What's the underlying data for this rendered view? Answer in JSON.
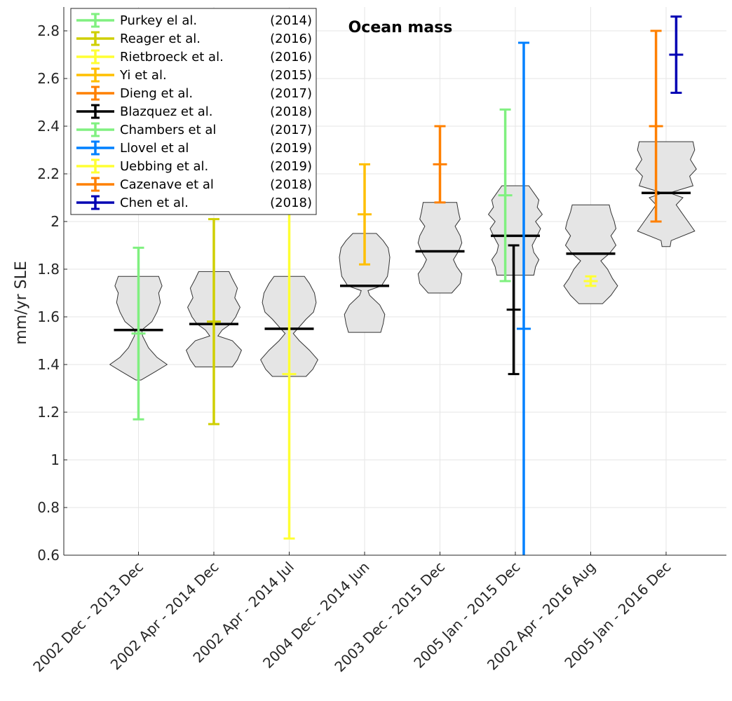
{
  "chart_data": {
    "type": "violin-errorbar",
    "title": "Ocean mass",
    "xlabel": "",
    "ylabel": "mm/yr SLE",
    "ylim": [
      0.6,
      2.9
    ],
    "yticks": [
      0.6,
      0.8,
      1,
      1.2,
      1.4,
      1.6,
      1.8,
      2,
      2.2,
      2.4,
      2.6,
      2.8
    ],
    "ytick_labels": [
      "0.6",
      "0.8",
      "1",
      "1.2",
      "1.4",
      "1.6",
      "1.8",
      "2",
      "2.2",
      "2.4",
      "2.6",
      "2.8"
    ],
    "grid": true,
    "legend_position": "top-left",
    "categories": [
      "2002 Dec - 2013 Dec",
      "2002 Apr - 2014 Dec",
      "2002 Apr - 2014 Jul",
      "2004 Dec - 2014 Jun",
      "2003 Dec - 2015 Dec",
      "2005 Jan - 2015 Dec",
      "2002 Apr - 2016 Aug",
      "2005 Jan - 2016 Dec"
    ],
    "violins": [
      {
        "median": 1.545,
        "min": 1.335,
        "max": 1.77,
        "shape": [
          [
            1.335,
            0.08
          ],
          [
            1.37,
            0.5
          ],
          [
            1.4,
            0.85
          ],
          [
            1.43,
            0.55
          ],
          [
            1.47,
            0.3
          ],
          [
            1.52,
            0.12
          ],
          [
            1.545,
            0.1
          ],
          [
            1.58,
            0.4
          ],
          [
            1.62,
            0.55
          ],
          [
            1.66,
            0.65
          ],
          [
            1.7,
            0.6
          ],
          [
            1.73,
            0.7
          ],
          [
            1.77,
            0.6
          ]
        ]
      },
      {
        "median": 1.57,
        "min": 1.39,
        "max": 1.79,
        "shape": [
          [
            1.39,
            0.55
          ],
          [
            1.42,
            0.7
          ],
          [
            1.46,
            0.82
          ],
          [
            1.5,
            0.55
          ],
          [
            1.52,
            0.12
          ],
          [
            1.545,
            0.25
          ],
          [
            1.57,
            0.5
          ],
          [
            1.6,
            0.65
          ],
          [
            1.64,
            0.78
          ],
          [
            1.68,
            0.62
          ],
          [
            1.72,
            0.7
          ],
          [
            1.76,
            0.55
          ],
          [
            1.79,
            0.45
          ]
        ]
      },
      {
        "median": 1.55,
        "min": 1.35,
        "max": 1.77,
        "shape": [
          [
            1.35,
            0.5
          ],
          [
            1.38,
            0.7
          ],
          [
            1.42,
            0.85
          ],
          [
            1.46,
            0.6
          ],
          [
            1.5,
            0.3
          ],
          [
            1.53,
            0.12
          ],
          [
            1.55,
            0.25
          ],
          [
            1.59,
            0.5
          ],
          [
            1.62,
            0.72
          ],
          [
            1.66,
            0.8
          ],
          [
            1.7,
            0.75
          ],
          [
            1.74,
            0.6
          ],
          [
            1.77,
            0.45
          ]
        ]
      },
      {
        "median": 1.73,
        "min": 1.535,
        "max": 1.95,
        "shape": [
          [
            1.535,
            0.48
          ],
          [
            1.57,
            0.55
          ],
          [
            1.61,
            0.6
          ],
          [
            1.65,
            0.45
          ],
          [
            1.69,
            0.15
          ],
          [
            1.71,
            0.1
          ],
          [
            1.73,
            0.5
          ],
          [
            1.77,
            0.68
          ],
          [
            1.81,
            0.72
          ],
          [
            1.85,
            0.75
          ],
          [
            1.89,
            0.7
          ],
          [
            1.92,
            0.55
          ],
          [
            1.95,
            0.35
          ]
        ]
      },
      {
        "median": 1.875,
        "min": 1.7,
        "max": 2.08,
        "shape": [
          [
            1.7,
            0.35
          ],
          [
            1.74,
            0.6
          ],
          [
            1.78,
            0.65
          ],
          [
            1.81,
            0.5
          ],
          [
            1.84,
            0.4
          ],
          [
            1.875,
            0.55
          ],
          [
            1.91,
            0.65
          ],
          [
            1.94,
            0.6
          ],
          [
            1.98,
            0.45
          ],
          [
            2.01,
            0.6
          ],
          [
            2.04,
            0.55
          ],
          [
            2.08,
            0.5
          ]
        ]
      },
      {
        "median": 1.94,
        "min": 1.775,
        "max": 2.15,
        "shape": [
          [
            1.775,
            0.55
          ],
          [
            1.81,
            0.6
          ],
          [
            1.84,
            0.7
          ],
          [
            1.87,
            0.55
          ],
          [
            1.9,
            0.5
          ],
          [
            1.94,
            0.65
          ],
          [
            1.97,
            0.75
          ],
          [
            2.0,
            0.6
          ],
          [
            2.03,
            0.8
          ],
          [
            2.06,
            0.65
          ],
          [
            2.09,
            0.7
          ],
          [
            2.12,
            0.55
          ],
          [
            2.15,
            0.4
          ]
        ]
      },
      {
        "median": 1.865,
        "min": 1.655,
        "max": 2.07,
        "shape": [
          [
            1.655,
            0.35
          ],
          [
            1.69,
            0.6
          ],
          [
            1.73,
            0.8
          ],
          [
            1.76,
            0.65
          ],
          [
            1.8,
            0.5
          ],
          [
            1.835,
            0.3
          ],
          [
            1.865,
            0.55
          ],
          [
            1.9,
            0.75
          ],
          [
            1.94,
            0.6
          ],
          [
            1.97,
            0.75
          ],
          [
            2.0,
            0.7
          ],
          [
            2.04,
            0.6
          ],
          [
            2.07,
            0.55
          ]
        ]
      },
      {
        "median": 2.12,
        "min": 1.895,
        "max": 2.335,
        "shape": [
          [
            1.895,
            0.12
          ],
          [
            1.92,
            0.15
          ],
          [
            1.96,
            0.85
          ],
          [
            2.0,
            0.65
          ],
          [
            2.04,
            0.45
          ],
          [
            2.07,
            0.3
          ],
          [
            2.1,
            0.5
          ],
          [
            2.12,
            0.1
          ],
          [
            2.15,
            0.8
          ],
          [
            2.19,
            0.7
          ],
          [
            2.22,
            0.9
          ],
          [
            2.26,
            0.72
          ],
          [
            2.3,
            0.85
          ],
          [
            2.335,
            0.8
          ]
        ]
      }
    ],
    "series": [
      {
        "name": "Purkey el al.",
        "year": "(2014)",
        "color": "#80f080",
        "category": 0,
        "value": 1.53,
        "lower": 1.17,
        "upper": 1.89
      },
      {
        "name": "Reager et al.",
        "year": "(2016)",
        "color": "#cfcf00",
        "category": 1,
        "value": 1.58,
        "lower": 1.15,
        "upper": 2.01
      },
      {
        "name": "Rietbroeck et al.",
        "year": "(2016)",
        "color": "#ffff33",
        "category": 2,
        "value": 1.36,
        "lower": 0.67,
        "upper": 2.05
      },
      {
        "name": "Yi et al.",
        "year": "(2015)",
        "color": "#ffbf00",
        "category": 3,
        "value": 2.03,
        "lower": 1.82,
        "upper": 2.24
      },
      {
        "name": "Dieng et al.",
        "year": "(2017)",
        "color": "#ff8000",
        "category": 4,
        "value": 2.24,
        "lower": 2.08,
        "upper": 2.4
      },
      {
        "name": "Blazquez et al.",
        "year": "(2018)",
        "color": "#000000",
        "category": 5,
        "offset": -0.05,
        "value": 1.63,
        "lower": 1.36,
        "upper": 1.9
      },
      {
        "name": "Chambers et al",
        "year": "(2017)",
        "color": "#80f080",
        "category": 5,
        "offset": -0.3,
        "value": 2.11,
        "lower": 1.75,
        "upper": 2.47
      },
      {
        "name": "Llovel et al",
        "year": "(2019)",
        "color": "#0080ff",
        "category": 5,
        "offset": 0.25,
        "value": 1.55,
        "lower": 0.35,
        "upper": 2.75
      },
      {
        "name": "Uebbing et al.",
        "year": "(2019)",
        "color": "#ffff33",
        "category": 6,
        "value": 1.75,
        "lower": 1.73,
        "upper": 1.77
      },
      {
        "name": "Cazenave et al",
        "year": "(2018)",
        "color": "#ff8000",
        "category": 7,
        "offset": -0.3,
        "value": 2.4,
        "lower": 2.0,
        "upper": 2.8
      },
      {
        "name": "Chen et al.",
        "year": "(2018)",
        "color": "#0000b3",
        "category": 7,
        "offset": 0.3,
        "value": 2.7,
        "lower": 2.54,
        "upper": 2.86
      }
    ]
  }
}
